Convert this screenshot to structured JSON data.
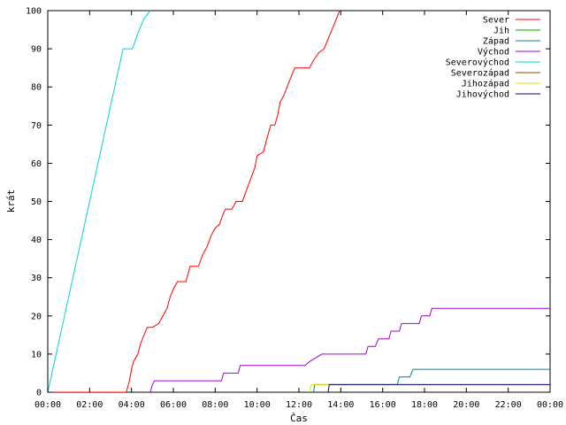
{
  "chart_data": {
    "type": "line",
    "xlabel": "Čas",
    "ylabel": "krát",
    "xlim": [
      0,
      24
    ],
    "ylim": [
      0,
      100
    ],
    "x_unit": "hours",
    "x_ticks": [
      0,
      2,
      4,
      6,
      8,
      10,
      12,
      14,
      16,
      18,
      20,
      22,
      24
    ],
    "x_tick_labels": [
      "00:00",
      "02:00",
      "04:00",
      "06:00",
      "08:00",
      "10:00",
      "12:00",
      "14:00",
      "16:00",
      "18:00",
      "20:00",
      "22:00",
      "00:00"
    ],
    "y_ticks": [
      0,
      10,
      20,
      30,
      40,
      50,
      60,
      70,
      80,
      90,
      100
    ],
    "y_tick_labels": [
      "0",
      "10",
      "20",
      "30",
      "40",
      "50",
      "60",
      "70",
      "80",
      "90",
      "100"
    ],
    "grid": false,
    "legend_position": "top-right",
    "series": [
      {
        "name": "Sever",
        "color": "#ff0000",
        "points": [
          [
            0,
            0
          ],
          [
            3.75,
            0
          ],
          [
            3.9,
            3
          ],
          [
            4.0,
            6
          ],
          [
            4.1,
            8
          ],
          [
            4.3,
            10
          ],
          [
            4.45,
            13
          ],
          [
            4.6,
            15
          ],
          [
            4.75,
            17
          ],
          [
            5.0,
            17
          ],
          [
            5.3,
            18
          ],
          [
            5.5,
            20
          ],
          [
            5.7,
            22
          ],
          [
            5.85,
            25
          ],
          [
            6.0,
            27
          ],
          [
            6.2,
            29
          ],
          [
            6.6,
            29
          ],
          [
            6.7,
            31
          ],
          [
            6.8,
            33
          ],
          [
            7.2,
            33
          ],
          [
            7.4,
            36
          ],
          [
            7.6,
            38
          ],
          [
            7.8,
            41
          ],
          [
            8.0,
            43
          ],
          [
            8.2,
            44
          ],
          [
            8.4,
            47
          ],
          [
            8.5,
            48
          ],
          [
            8.8,
            48
          ],
          [
            9.0,
            50
          ],
          [
            9.3,
            50
          ],
          [
            9.5,
            53
          ],
          [
            9.7,
            56
          ],
          [
            9.9,
            59
          ],
          [
            10.0,
            62
          ],
          [
            10.3,
            63
          ],
          [
            10.45,
            66
          ],
          [
            10.55,
            68
          ],
          [
            10.65,
            70
          ],
          [
            10.85,
            70
          ],
          [
            11.0,
            73
          ],
          [
            11.1,
            76
          ],
          [
            11.3,
            78
          ],
          [
            11.5,
            81
          ],
          [
            11.65,
            83
          ],
          [
            11.8,
            85
          ],
          [
            12.5,
            85
          ],
          [
            12.7,
            87
          ],
          [
            12.95,
            89
          ],
          [
            13.2,
            90
          ],
          [
            13.35,
            92
          ],
          [
            13.5,
            94
          ],
          [
            13.65,
            96
          ],
          [
            13.8,
            98
          ],
          [
            13.95,
            100
          ]
        ]
      },
      {
        "name": "Jih",
        "color": "#00a000",
        "points": []
      },
      {
        "name": "Západ",
        "color": "#0080a0",
        "points": [
          [
            12.7,
            0
          ],
          [
            12.75,
            2
          ],
          [
            16.7,
            2
          ],
          [
            16.8,
            4
          ],
          [
            17.3,
            4
          ],
          [
            17.45,
            6
          ],
          [
            24,
            6
          ]
        ]
      },
      {
        "name": "Východ",
        "color": "#a000d0",
        "points": [
          [
            4.9,
            0
          ],
          [
            5.0,
            2
          ],
          [
            5.1,
            3
          ],
          [
            8.3,
            3
          ],
          [
            8.4,
            5
          ],
          [
            9.1,
            5
          ],
          [
            9.2,
            7
          ],
          [
            12.3,
            7
          ],
          [
            12.5,
            8
          ],
          [
            12.8,
            9
          ],
          [
            13.1,
            10
          ],
          [
            15.2,
            10
          ],
          [
            15.3,
            12
          ],
          [
            15.65,
            12
          ],
          [
            15.8,
            14
          ],
          [
            16.3,
            14
          ],
          [
            16.4,
            16
          ],
          [
            16.8,
            16
          ],
          [
            16.9,
            18
          ],
          [
            17.75,
            18
          ],
          [
            17.85,
            20
          ],
          [
            18.25,
            20
          ],
          [
            18.35,
            22
          ],
          [
            24,
            22
          ]
        ]
      },
      {
        "name": "Severovýchod",
        "color": "#00d0e0",
        "points": [
          [
            0,
            0
          ],
          [
            0.4,
            10
          ],
          [
            0.8,
            20
          ],
          [
            1.2,
            30
          ],
          [
            1.6,
            40
          ],
          [
            2.0,
            50
          ],
          [
            2.4,
            60
          ],
          [
            2.8,
            70
          ],
          [
            3.2,
            80
          ],
          [
            3.6,
            90
          ],
          [
            4.05,
            90
          ],
          [
            4.3,
            94
          ],
          [
            4.6,
            98
          ],
          [
            4.9,
            100
          ]
        ]
      },
      {
        "name": "Severozápad",
        "color": "#a04000",
        "points": []
      },
      {
        "name": "Jihozápad",
        "color": "#e0e000",
        "points": [
          [
            12.5,
            0
          ],
          [
            12.6,
            2
          ],
          [
            24,
            2
          ]
        ]
      },
      {
        "name": "Jihovýchod",
        "color": "#000080",
        "points": [
          [
            13.4,
            0
          ],
          [
            13.45,
            2
          ],
          [
            24,
            2
          ]
        ]
      }
    ]
  }
}
